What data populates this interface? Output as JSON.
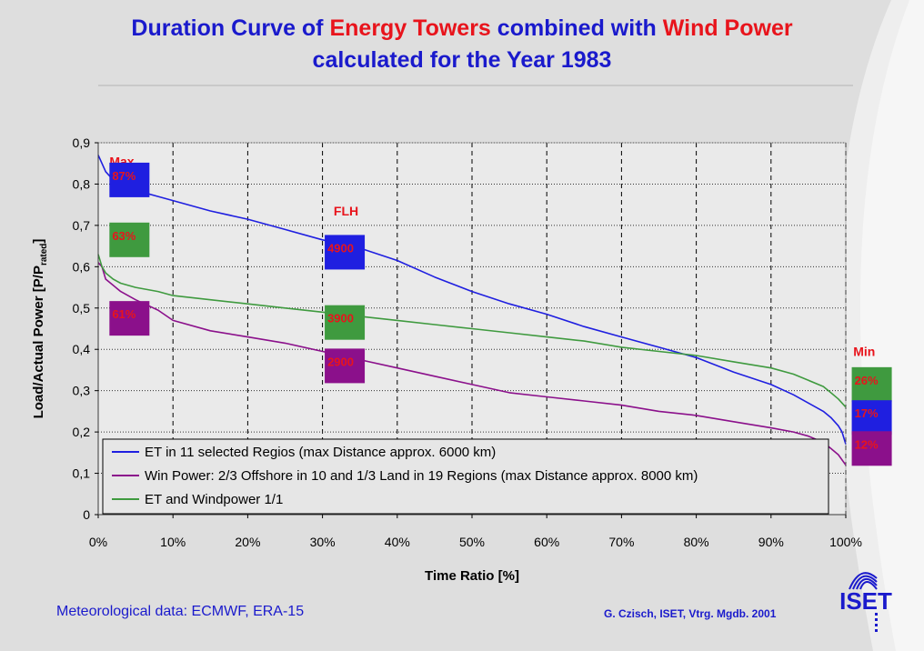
{
  "title": {
    "line1": [
      {
        "text": "Duration Curve of ",
        "highlight": false
      },
      {
        "text": "Energy Towers",
        "highlight": true
      },
      {
        "text": " combined with ",
        "highlight": false
      },
      {
        "text": "Wind Power",
        "highlight": true
      }
    ],
    "line2": "calculated for the Year 1983"
  },
  "colors": {
    "title_blue": "#1a1acc",
    "title_red": "#e8141c",
    "et": "#1f1fe0",
    "wind": "#8b108b",
    "combined": "#3f9a3f",
    "label_red": "#e8141c"
  },
  "chart_data": {
    "type": "line",
    "title": "Duration Curve of Energy Towers combined with Wind Power calculated for the Year 1983",
    "xlabel": "Time Ratio [%]",
    "ylabel": "Load/Actual Power [P/P",
    "ylabel_sub": "rated",
    "ylabel_end": "]",
    "xlim": [
      0,
      100
    ],
    "ylim": [
      0,
      0.9
    ],
    "x_ticks": [
      0,
      10,
      20,
      30,
      40,
      50,
      60,
      70,
      80,
      90,
      100
    ],
    "x_tick_labels": [
      "0%",
      "10%",
      "20%",
      "30%",
      "40%",
      "50%",
      "60%",
      "70%",
      "80%",
      "90%",
      "100%"
    ],
    "y_ticks": [
      0,
      0.1,
      0.2,
      0.3,
      0.4,
      0.5,
      0.6,
      0.7,
      0.8,
      0.9
    ],
    "y_tick_labels": [
      "0",
      "0,1",
      "0,2",
      "0,3",
      "0,4",
      "0,5",
      "0,6",
      "0,7",
      "0,8",
      "0,9"
    ],
    "grid": "vertical dashed, horizontal dotted",
    "legend_position": "bottom-left",
    "series": [
      {
        "name": "ET in 11 selected Regios (max Distance approx. 6000 km)",
        "color_key": "et",
        "x": [
          0,
          0.5,
          1,
          2,
          3,
          5,
          8,
          10,
          15,
          20,
          25,
          30,
          35,
          40,
          45,
          50,
          55,
          60,
          65,
          70,
          75,
          80,
          85,
          90,
          93,
          95,
          97,
          98,
          99,
          99.5,
          100
        ],
        "y": [
          0.87,
          0.85,
          0.83,
          0.81,
          0.795,
          0.785,
          0.77,
          0.76,
          0.735,
          0.715,
          0.69,
          0.665,
          0.645,
          0.615,
          0.575,
          0.54,
          0.51,
          0.485,
          0.455,
          0.43,
          0.405,
          0.38,
          0.345,
          0.315,
          0.29,
          0.27,
          0.25,
          0.235,
          0.215,
          0.2,
          0.17
        ]
      },
      {
        "name": "Win Power: 2/3 Offshore in 10 and 1/3 Land in 19 Regions (max Distance approx. 8000 km)",
        "color_key": "wind",
        "x": [
          0,
          0.5,
          1,
          2,
          3,
          5,
          8,
          10,
          15,
          20,
          25,
          30,
          35,
          40,
          45,
          50,
          55,
          60,
          65,
          70,
          75,
          80,
          85,
          90,
          93,
          95,
          97,
          98,
          99,
          100
        ],
        "y": [
          0.61,
          0.6,
          0.57,
          0.555,
          0.54,
          0.52,
          0.495,
          0.47,
          0.445,
          0.43,
          0.415,
          0.395,
          0.375,
          0.355,
          0.335,
          0.315,
          0.295,
          0.285,
          0.275,
          0.265,
          0.25,
          0.24,
          0.225,
          0.21,
          0.2,
          0.19,
          0.175,
          0.16,
          0.145,
          0.12
        ]
      },
      {
        "name": "ET and Windpower 1/1",
        "color_key": "combined",
        "x": [
          0,
          0.5,
          1,
          2,
          3,
          5,
          8,
          10,
          15,
          20,
          25,
          30,
          35,
          40,
          45,
          50,
          55,
          60,
          65,
          70,
          75,
          80,
          85,
          90,
          93,
          95,
          97,
          98,
          99,
          100
        ],
        "y": [
          0.63,
          0.6,
          0.585,
          0.57,
          0.56,
          0.55,
          0.54,
          0.53,
          0.52,
          0.51,
          0.5,
          0.49,
          0.48,
          0.47,
          0.46,
          0.45,
          0.44,
          0.43,
          0.42,
          0.405,
          0.395,
          0.385,
          0.37,
          0.355,
          0.34,
          0.325,
          0.31,
          0.295,
          0.28,
          0.26
        ]
      }
    ],
    "annotations": [
      {
        "text": "Max",
        "x": 1.5,
        "y": 0.855,
        "style": "text"
      },
      {
        "text": "FLH",
        "x": 31.5,
        "y": 0.735,
        "style": "text"
      },
      {
        "text": "Min",
        "x": 101.0,
        "y": 0.395,
        "style": "text"
      },
      {
        "text": "87%",
        "x": 1.5,
        "y": 0.81,
        "style": "box",
        "color_key": "et"
      },
      {
        "text": "63%",
        "x": 1.5,
        "y": 0.665,
        "style": "box",
        "color_key": "combined"
      },
      {
        "text": "61%",
        "x": 1.5,
        "y": 0.475,
        "style": "box",
        "color_key": "wind"
      },
      {
        "text": "4900",
        "x": 30.3,
        "y": 0.635,
        "style": "box",
        "color_key": "et"
      },
      {
        "text": "3900",
        "x": 30.3,
        "y": 0.465,
        "style": "box",
        "color_key": "combined"
      },
      {
        "text": "2900",
        "x": 30.3,
        "y": 0.36,
        "style": "box",
        "color_key": "wind"
      },
      {
        "text": "26%",
        "x": 100.8,
        "y": 0.315,
        "style": "box",
        "color_key": "combined"
      },
      {
        "text": "17%",
        "x": 100.8,
        "y": 0.235,
        "style": "box",
        "color_key": "et"
      },
      {
        "text": "12%",
        "x": 100.8,
        "y": 0.16,
        "style": "box",
        "color_key": "wind"
      }
    ]
  },
  "footer": {
    "left": "Meteorological data: ECMWF, ERA-15",
    "right": "G. Czisch, ISET, Vtrg. Mgdb. 2001"
  },
  "logo": {
    "text": "ISET"
  }
}
